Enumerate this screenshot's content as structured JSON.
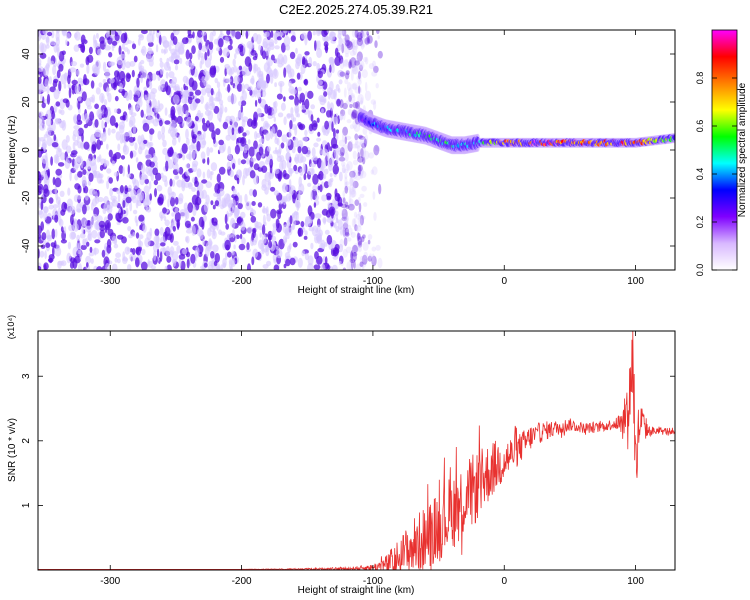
{
  "figure": {
    "title": "C2E2.2025.274.05.39.R21"
  },
  "colors": {
    "noise_strong": "#5a10e0",
    "noise_weak": "#d7c8ff",
    "snr_line": "#e8312f",
    "axis": "#000000"
  },
  "colorbar": {
    "label": "Normalized spectral amplitude",
    "range": [
      0,
      1
    ],
    "ticks": [
      "0.0",
      "0.2",
      "0.4",
      "0.6",
      "0.8"
    ],
    "tick_values": [
      0,
      0.2,
      0.4,
      0.6,
      0.8
    ],
    "colormap": [
      "#ffffff",
      "#d8b8ff",
      "#7f00ff",
      "#0000ff",
      "#00ffff",
      "#00ff00",
      "#ffff00",
      "#ff8000",
      "#ff0000",
      "#ff00ff"
    ]
  },
  "chart_data": [
    {
      "type": "heatmap",
      "title": "C2E2.2025.274.05.39.R21",
      "xlabel": "Height of straight line (km)",
      "ylabel": "Frequency (Hz)",
      "xlim": [
        -355,
        130
      ],
      "ylim": [
        -50,
        50
      ],
      "x_ticks": [
        -300,
        -200,
        -100,
        0,
        100
      ],
      "x_tick_labels": [
        "-300",
        "-200",
        "-100",
        "0",
        "100"
      ],
      "y_ticks": [
        -40,
        -20,
        0,
        20,
        40
      ],
      "y_tick_labels": [
        "-40",
        "-20",
        "0",
        "20",
        "40"
      ],
      "grid": false,
      "noise_region_x": [
        -355,
        -105
      ],
      "ridge": {
        "x": [
          -110,
          -100,
          -90,
          -80,
          -70,
          -60,
          -50,
          -40,
          -30,
          -20,
          -10,
          0,
          20,
          40,
          60,
          80,
          100,
          130
        ],
        "frequency": [
          14,
          11,
          9,
          8,
          7,
          6,
          4,
          2,
          2,
          3,
          3,
          3,
          3,
          3,
          3,
          3,
          3,
          5
        ],
        "amplitude": [
          0.2,
          0.4,
          0.45,
          0.5,
          0.5,
          0.55,
          0.55,
          0.55,
          0.45,
          0.55,
          0.7,
          0.85,
          0.95,
          0.95,
          0.9,
          0.95,
          0.9,
          0.6
        ]
      }
    },
    {
      "type": "line",
      "xlabel": "Height of straight line (km)",
      "ylabel": "SNR (10 * v/v)",
      "y_multiplier": "(x10⁴)",
      "xlim": [
        -355,
        130
      ],
      "ylim": [
        0,
        3.7
      ],
      "x_ticks": [
        -300,
        -200,
        -100,
        0,
        100
      ],
      "x_tick_labels": [
        "-300",
        "-200",
        "-100",
        "0",
        "100"
      ],
      "y_ticks": [
        1,
        2,
        3
      ],
      "y_tick_labels": [
        "1",
        "2",
        "3"
      ],
      "grid": false,
      "series": [
        {
          "x": [
            -355,
            -300,
            -200,
            -120,
            -100,
            -90,
            -80,
            -70,
            -60,
            -50,
            -40,
            -30,
            -20,
            -10,
            0,
            10,
            20,
            30,
            40,
            50,
            60,
            70,
            80,
            90,
            95,
            98,
            100,
            103,
            110,
            120,
            130
          ],
          "y": [
            0.01,
            0.01,
            0.01,
            0.02,
            0.04,
            0.08,
            0.2,
            0.35,
            0.5,
            0.7,
            0.9,
            1.1,
            1.3,
            1.55,
            1.7,
            1.85,
            2.05,
            2.15,
            2.2,
            2.25,
            2.2,
            2.2,
            2.25,
            2.3,
            2.6,
            3.4,
            1.5,
            2.3,
            2.15,
            2.15,
            2.15
          ],
          "y_spread": [
            0,
            0,
            0,
            0.02,
            0.05,
            0.15,
            0.3,
            0.45,
            0.5,
            0.55,
            0.6,
            0.6,
            0.55,
            0.45,
            0.35,
            0.25,
            0.2,
            0.15,
            0.12,
            0.1,
            0.08,
            0.08,
            0.08,
            0.15,
            0.5,
            0.8,
            0.8,
            0.4,
            0.08,
            0.06,
            0.05
          ]
        }
      ]
    }
  ]
}
